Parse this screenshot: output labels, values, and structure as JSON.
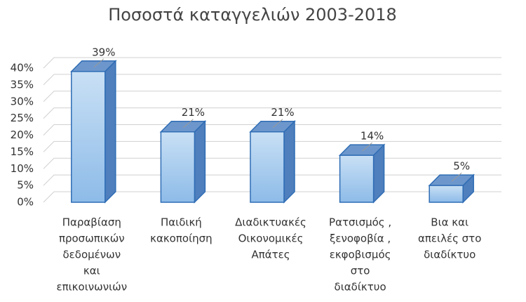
{
  "chart_data": {
    "type": "bar3d",
    "title": "Ποσοστά καταγγελιών 2003-2018",
    "categories": [
      [
        "Παραβίαση",
        "προσωπικών",
        "δεδομένων",
        "και",
        "επικοινωνιών"
      ],
      [
        "Παιδική",
        "κακοποίηση"
      ],
      [
        "Διαδικτυακές",
        "Οικονομικές",
        "Απάτες"
      ],
      [
        "Ρατσισμός ,",
        "ξενοφοβία ,",
        "εκφοβισμός",
        "στο",
        "διαδίκτυο"
      ],
      [
        "Βια και",
        "απειλές στο",
        "διαδίκτυο"
      ]
    ],
    "values": [
      39,
      21,
      21,
      14,
      5
    ],
    "value_labels": [
      "39%",
      "21%",
      "21%",
      "14%",
      "5%"
    ],
    "color": "#9ec5ec",
    "ylim": [
      0,
      40
    ],
    "yticks": [
      {
        "value": 0,
        "label": "0%"
      },
      {
        "value": 5,
        "label": "5%"
      },
      {
        "value": 10,
        "label": "10%"
      },
      {
        "value": 15,
        "label": "15%"
      },
      {
        "value": 20,
        "label": "20%"
      },
      {
        "value": 25,
        "label": "25%"
      },
      {
        "value": 30,
        "label": "30%"
      },
      {
        "value": 35,
        "label": "35%"
      },
      {
        "value": 40,
        "label": "40%"
      }
    ],
    "grid": true
  }
}
